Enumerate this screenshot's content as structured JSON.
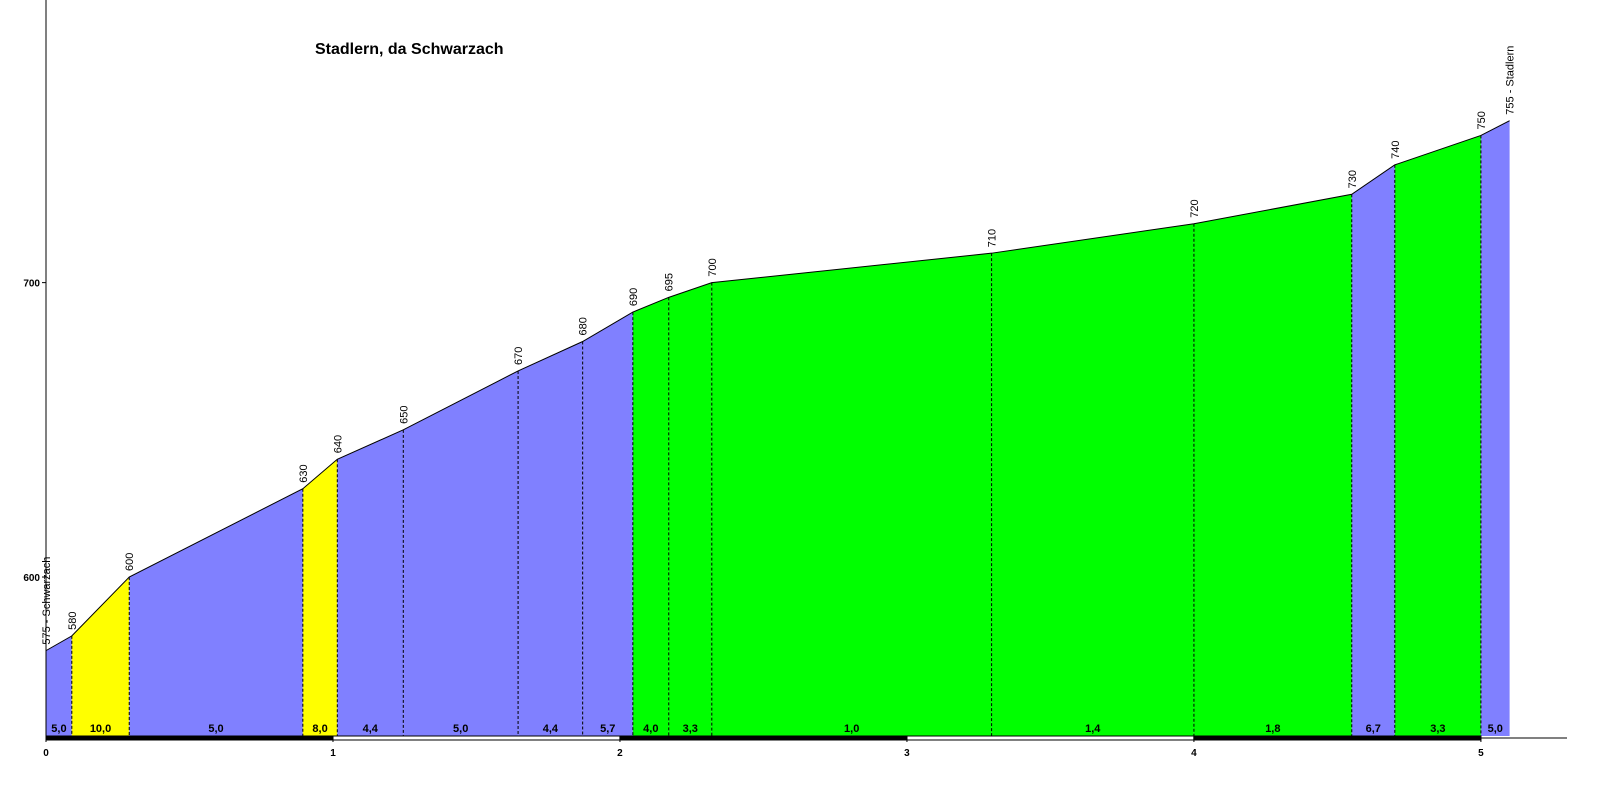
{
  "chart_data": {
    "type": "profile",
    "title": "Stadlern, da Schwarzach",
    "x": [
      0,
      0.09,
      0.29,
      0.895,
      1.015,
      1.245,
      1.645,
      1.87,
      2.045,
      2.17,
      2.32,
      3.295,
      4.0,
      4.55,
      4.7,
      5.0,
      5.1
    ],
    "values": [
      575,
      580,
      600,
      630,
      640,
      650,
      670,
      680,
      690,
      695,
      700,
      710,
      720,
      730,
      740,
      750,
      755
    ],
    "value_labels": [
      "575 - Schwarzach",
      "580",
      "600",
      "630",
      "640",
      "650",
      "670",
      "680",
      "690",
      "695",
      "700",
      "710",
      "720",
      "730",
      "740",
      "750",
      "755 - Stadlern"
    ],
    "segments": {
      "values": [
        5.0,
        10.0,
        5.0,
        8.0,
        4.4,
        5.0,
        4.4,
        5.7,
        4.0,
        3.3,
        1.0,
        1.4,
        1.8,
        6.7,
        3.3,
        5.0
      ],
      "value_labels": [
        "5,0",
        "10,0",
        "5,0",
        "8,0",
        "4,4",
        "5,0",
        "4,4",
        "5,7",
        "4,0",
        "3,3",
        "1,0",
        "1,4",
        "1,8",
        "6,7",
        "3,3",
        "5,0"
      ],
      "colors": [
        "#8080ff",
        "#ffff00",
        "#8080ff",
        "#ffff00",
        "#8080ff",
        "#8080ff",
        "#8080ff",
        "#8080ff",
        "#00ff00",
        "#00ff00",
        "#00ff00",
        "#00ff00",
        "#00ff00",
        "#8080ff",
        "#00ff00",
        "#8080ff"
      ]
    },
    "xlim": [
      0,
      5.3
    ],
    "xticks": [
      0,
      1,
      2,
      3,
      4,
      5
    ],
    "ylim": [
      546,
      796
    ],
    "yticks": [
      600,
      700
    ]
  }
}
